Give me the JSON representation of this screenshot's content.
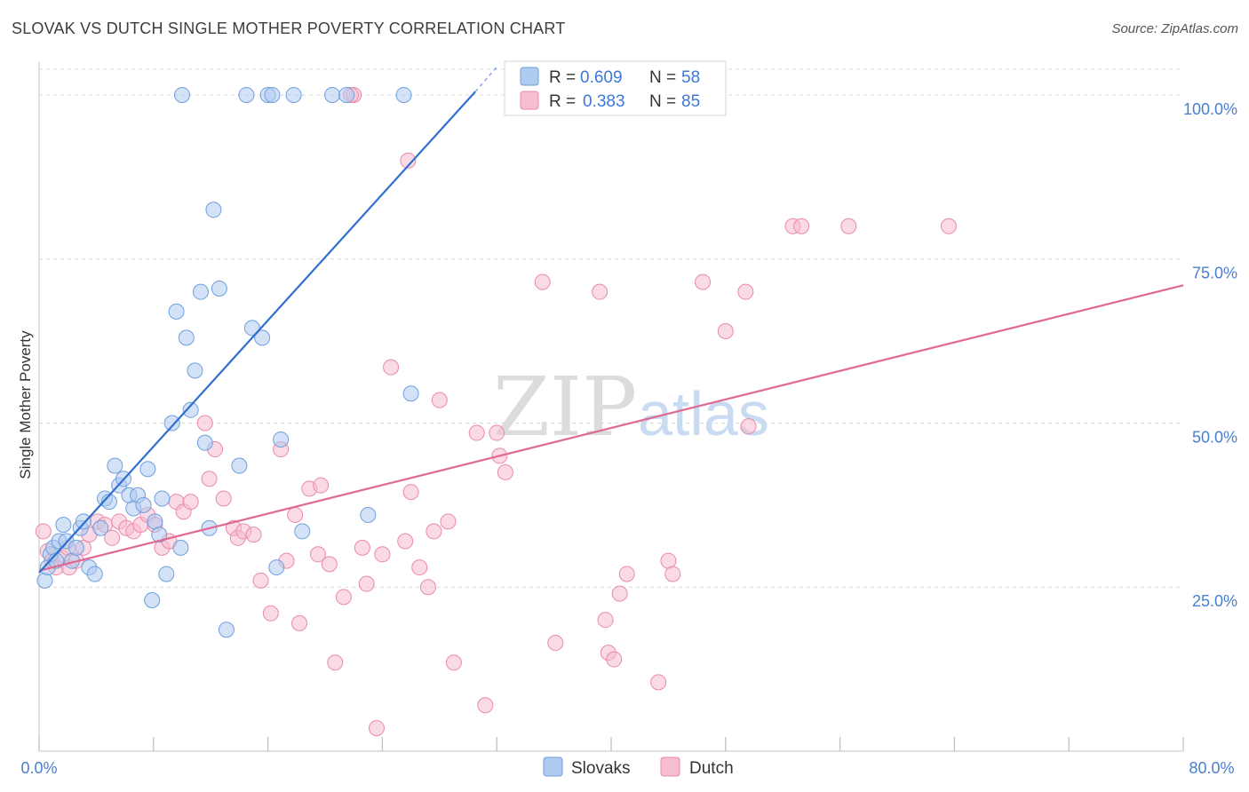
{
  "title": "SLOVAK VS DUTCH SINGLE MOTHER POVERTY CORRELATION CHART",
  "source": "Source: ZipAtlas.com",
  "watermark": {
    "zip": "ZIP",
    "atlas": "atlas"
  },
  "legend_top": [
    {
      "r_label": "R =",
      "r_value": "0.609",
      "n_label": "N =",
      "n_value": "58"
    },
    {
      "r_label": "R =",
      "r_value": "0.383",
      "n_label": "N =",
      "n_value": "85"
    }
  ],
  "legend_bottom": [
    "Slovaks",
    "Dutch"
  ],
  "colors": {
    "slovaks_fill": "#aecbf0",
    "slovaks_stroke": "#6f9fdc",
    "slovaks_line": "#2f6fd0",
    "dutch_fill": "#f6bcd0",
    "dutch_stroke": "#e98aab",
    "dutch_line": "#e06892",
    "grid": "#d9d9d9",
    "tick_label": "#4a7fd0"
  },
  "chart_data": {
    "type": "scatter",
    "title": "SLOVAK VS DUTCH SINGLE MOTHER POVERTY CORRELATION CHART",
    "xlabel": "",
    "ylabel": "Single Mother Poverty",
    "xlim": [
      0,
      80
    ],
    "ylim": [
      0,
      105
    ],
    "x_tick_labels": [
      "0.0%",
      "80.0%"
    ],
    "y_tick_labels": [
      "25.0%",
      "50.0%",
      "75.0%",
      "100.0%"
    ],
    "y_ticks": [
      25,
      50,
      75,
      100
    ],
    "grid": true,
    "legend_position": "top-center",
    "series": [
      {
        "name": "Slovaks",
        "R": 0.609,
        "N": 58,
        "trend": {
          "x": [
            0,
            30.5
          ],
          "y": [
            27.2,
            100.5
          ]
        },
        "points": [
          [
            0.4,
            26
          ],
          [
            0.6,
            28
          ],
          [
            0.8,
            30
          ],
          [
            1.0,
            31
          ],
          [
            1.2,
            29
          ],
          [
            1.4,
            32
          ],
          [
            1.7,
            34.5
          ],
          [
            1.9,
            32
          ],
          [
            2.3,
            29
          ],
          [
            2.6,
            31
          ],
          [
            2.9,
            34
          ],
          [
            3.1,
            35
          ],
          [
            3.5,
            28
          ],
          [
            3.9,
            27
          ],
          [
            4.3,
            34
          ],
          [
            4.6,
            38.5
          ],
          [
            4.9,
            38
          ],
          [
            5.3,
            43.5
          ],
          [
            5.6,
            40.5
          ],
          [
            5.9,
            41.5
          ],
          [
            6.3,
            39
          ],
          [
            6.6,
            37
          ],
          [
            6.9,
            39
          ],
          [
            7.3,
            37.5
          ],
          [
            7.6,
            43
          ],
          [
            7.9,
            23
          ],
          [
            8.1,
            35
          ],
          [
            8.4,
            33
          ],
          [
            8.6,
            38.5
          ],
          [
            8.9,
            27
          ],
          [
            9.3,
            50
          ],
          [
            9.6,
            67
          ],
          [
            9.9,
            31
          ],
          [
            10.3,
            63
          ],
          [
            10.6,
            52
          ],
          [
            10.9,
            58
          ],
          [
            11.3,
            70
          ],
          [
            11.6,
            47
          ],
          [
            11.9,
            34
          ],
          [
            12.2,
            82.5
          ],
          [
            12.6,
            70.5
          ],
          [
            13.1,
            18.5
          ],
          [
            14.0,
            43.5
          ],
          [
            14.9,
            64.5
          ],
          [
            15.6,
            63
          ],
          [
            16.6,
            28
          ],
          [
            16.9,
            47.5
          ],
          [
            18.4,
            33.5
          ],
          [
            23.0,
            36
          ],
          [
            26.0,
            54.5
          ],
          [
            10.0,
            100
          ],
          [
            14.5,
            100
          ],
          [
            16.0,
            100
          ],
          [
            16.3,
            100
          ],
          [
            17.8,
            100
          ],
          [
            20.5,
            100
          ],
          [
            21.5,
            100
          ],
          [
            25.5,
            100
          ]
        ]
      },
      {
        "name": "Dutch",
        "R": 0.383,
        "N": 85,
        "trend": {
          "x": [
            0,
            80
          ],
          "y": [
            27.5,
            71
          ]
        },
        "points": [
          [
            0.3,
            33.5
          ],
          [
            0.6,
            30.5
          ],
          [
            0.9,
            29
          ],
          [
            1.2,
            28
          ],
          [
            1.6,
            29.5
          ],
          [
            2.1,
            28
          ],
          [
            2.6,
            29
          ],
          [
            3.1,
            31
          ],
          [
            3.5,
            33
          ],
          [
            4.1,
            35
          ],
          [
            4.6,
            34.5
          ],
          [
            5.1,
            32.5
          ],
          [
            5.6,
            35
          ],
          [
            6.1,
            34
          ],
          [
            6.6,
            33.5
          ],
          [
            7.1,
            34.5
          ],
          [
            7.6,
            36
          ],
          [
            8.1,
            34.5
          ],
          [
            8.6,
            31
          ],
          [
            9.1,
            32
          ],
          [
            9.6,
            38
          ],
          [
            10.1,
            36.5
          ],
          [
            10.6,
            38
          ],
          [
            11.6,
            50
          ],
          [
            11.9,
            41.5
          ],
          [
            12.3,
            46
          ],
          [
            12.9,
            38.5
          ],
          [
            13.6,
            34
          ],
          [
            13.9,
            32.5
          ],
          [
            14.3,
            33.5
          ],
          [
            15.0,
            33
          ],
          [
            15.5,
            26
          ],
          [
            16.2,
            21
          ],
          [
            16.9,
            46
          ],
          [
            17.3,
            29
          ],
          [
            17.9,
            36
          ],
          [
            18.2,
            19.5
          ],
          [
            18.9,
            40
          ],
          [
            19.5,
            30
          ],
          [
            19.7,
            40.5
          ],
          [
            20.3,
            28.5
          ],
          [
            20.7,
            13.5
          ],
          [
            21.3,
            23.5
          ],
          [
            22.0,
            100
          ],
          [
            22.6,
            31
          ],
          [
            22.9,
            25.5
          ],
          [
            23.6,
            3.5
          ],
          [
            24.0,
            30
          ],
          [
            24.6,
            58.5
          ],
          [
            25.6,
            32
          ],
          [
            26.0,
            39.5
          ],
          [
            26.6,
            28
          ],
          [
            27.2,
            25
          ],
          [
            27.6,
            33.5
          ],
          [
            28.0,
            53.5
          ],
          [
            28.6,
            35
          ],
          [
            29.0,
            13.5
          ],
          [
            30.6,
            48.5
          ],
          [
            31.2,
            7
          ],
          [
            32.0,
            48.5
          ],
          [
            32.2,
            45
          ],
          [
            32.6,
            42.5
          ],
          [
            25.8,
            90
          ],
          [
            35.2,
            71.5
          ],
          [
            36.1,
            16.5
          ],
          [
            39.2,
            70
          ],
          [
            39.6,
            20
          ],
          [
            39.8,
            15
          ],
          [
            40.2,
            14
          ],
          [
            40.6,
            24
          ],
          [
            41.1,
            27
          ],
          [
            43.3,
            10.5
          ],
          [
            44.0,
            29
          ],
          [
            44.3,
            27
          ],
          [
            46.4,
            71.5
          ],
          [
            48.0,
            64
          ],
          [
            49.4,
            70
          ],
          [
            49.6,
            49.5
          ],
          [
            52.7,
            80
          ],
          [
            53.3,
            80
          ],
          [
            56.6,
            80
          ],
          [
            63.6,
            80
          ],
          [
            37.2,
            100
          ],
          [
            21.8,
            100
          ],
          [
            2.0,
            31
          ]
        ]
      }
    ]
  }
}
